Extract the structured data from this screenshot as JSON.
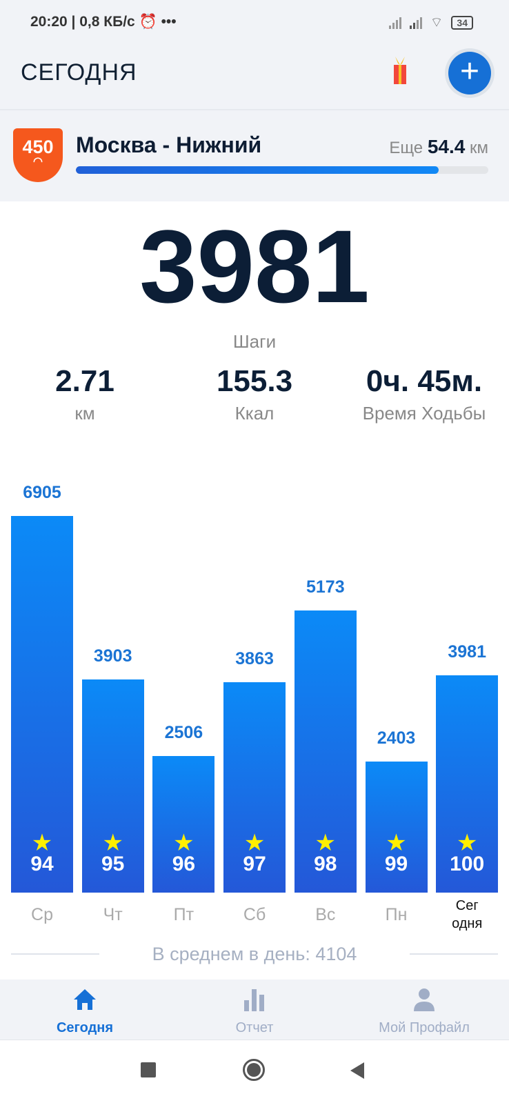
{
  "status_bar": {
    "time": "20:20 | 0,8 КБ/с",
    "more": "•••",
    "battery": "34"
  },
  "header": {
    "title": "СЕГОДНЯ",
    "add_icon": "plus-icon",
    "gift_icon": "gift-icon"
  },
  "route": {
    "badge": "450",
    "name": "Москва - Нижний",
    "remaining_prefix": "Еще",
    "remaining_value": "54.4",
    "remaining_unit": "км",
    "progress": 0.88
  },
  "today": {
    "steps": "3981",
    "steps_label": "Шаги",
    "stats": [
      {
        "value": "2.71",
        "label": "км"
      },
      {
        "value": "155.3",
        "label": "Ккал"
      },
      {
        "value": "0ч. 45м.",
        "label": "Время Ходьбы"
      }
    ]
  },
  "chart_data": {
    "type": "bar",
    "categories": [
      "Ср",
      "Чт",
      "Пт",
      "Сб",
      "Вс",
      "Пн",
      "Сег одня"
    ],
    "values": [
      6905,
      3903,
      2506,
      3863,
      5173,
      2403,
      3981
    ],
    "scores": [
      94,
      95,
      96,
      97,
      98,
      99,
      100
    ],
    "ylim": [
      0,
      6905
    ],
    "grid": false,
    "colors": {
      "bar_top": "#0b8af7",
      "bar_bottom": "#2458d8",
      "star": "#ffef00"
    }
  },
  "chart_labels": {
    "today_line1": "Сег",
    "today_line2": "одня"
  },
  "average": "В среднем в день: 4104",
  "nav": {
    "tabs": [
      {
        "label": "Сегодня",
        "icon": "home-icon",
        "active": true
      },
      {
        "label": "Отчет",
        "icon": "bar-chart-icon"
      },
      {
        "label": "Мой Профайл",
        "icon": "person-icon"
      }
    ]
  },
  "colors": {
    "accent": "#1670d6",
    "badge": "#f5581d",
    "text_dark": "#0c1e36"
  }
}
